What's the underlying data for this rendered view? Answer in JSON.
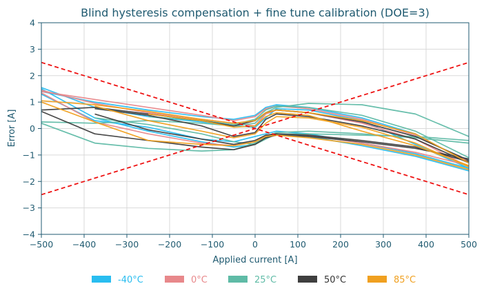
{
  "chart_data": {
    "type": "line",
    "title": "Blind hysteresis compensation + fine tune calibration (DOE=3)",
    "xlabel": "Applied current [A]",
    "ylabel": "Error [A]",
    "xlim": [
      -500,
      500
    ],
    "ylim": [
      -4,
      4
    ],
    "xticks": [
      -500,
      -400,
      -300,
      -200,
      -100,
      0,
      100,
      200,
      300,
      400,
      500
    ],
    "yticks": [
      -4,
      -3,
      -2,
      -1,
      0,
      1,
      2,
      3,
      4
    ],
    "xtick_labels": [
      "−500",
      "−400",
      "−300",
      "−200",
      "−100",
      "0",
      "100",
      "200",
      "300",
      "400",
      "500"
    ],
    "ytick_labels": [
      "−4",
      "−3",
      "−2",
      "−1",
      "0",
      "1",
      "2",
      "3",
      "4"
    ],
    "grid": true,
    "legend_position": "bottom",
    "limit_lines": [
      {
        "color": "#ee1111",
        "dash": "dashed",
        "points": [
          [
            -500,
            2.5
          ],
          [
            500,
            -2.5
          ]
        ]
      },
      {
        "color": "#ee1111",
        "dash": "dashed",
        "points": [
          [
            -500,
            -2.5
          ],
          [
            500,
            2.5
          ]
        ]
      }
    ],
    "series": [
      {
        "name": "-40°C",
        "color": "#29bdf0",
        "lines": [
          [
            [
              -500,
              1.55
            ],
            [
              -375,
              0.8
            ],
            [
              -250,
              0.45
            ],
            [
              -125,
              0.25
            ],
            [
              -50,
              0.1
            ],
            [
              0,
              0.05
            ],
            [
              25,
              0.4
            ],
            [
              50,
              0.75
            ],
            [
              125,
              0.7
            ],
            [
              250,
              0.3
            ],
            [
              375,
              -0.6
            ],
            [
              500,
              -1.5
            ]
          ],
          [
            [
              -500,
              1.4
            ],
            [
              -375,
              1.0
            ],
            [
              -250,
              0.7
            ],
            [
              -125,
              0.45
            ],
            [
              -50,
              0.35
            ],
            [
              0,
              0.5
            ],
            [
              25,
              0.8
            ],
            [
              50,
              0.9
            ],
            [
              125,
              0.8
            ],
            [
              250,
              0.4
            ],
            [
              375,
              -0.2
            ],
            [
              500,
              -1.3
            ]
          ],
          [
            [
              500,
              -1.6
            ],
            [
              375,
              -1.05
            ],
            [
              250,
              -0.65
            ],
            [
              125,
              -0.3
            ],
            [
              50,
              -0.2
            ],
            [
              25,
              -0.35
            ],
            [
              0,
              -0.6
            ],
            [
              -50,
              -0.7
            ],
            [
              -125,
              -0.5
            ],
            [
              -250,
              -0.1
            ],
            [
              -375,
              0.4
            ],
            [
              -500,
              1.5
            ]
          ],
          [
            [
              500,
              -1.5
            ],
            [
              375,
              -0.95
            ],
            [
              250,
              -0.55
            ],
            [
              125,
              -0.2
            ],
            [
              50,
              -0.1
            ],
            [
              25,
              -0.2
            ],
            [
              0,
              -0.3
            ],
            [
              -50,
              -0.5
            ],
            [
              -125,
              -0.4
            ],
            [
              -250,
              0.05
            ],
            [
              -375,
              0.3
            ],
            [
              -500,
              1.3
            ]
          ]
        ]
      },
      {
        "name": "0°C",
        "color": "#e8888b",
        "lines": [
          [
            [
              -500,
              1.4
            ],
            [
              -375,
              1.1
            ],
            [
              -250,
              0.8
            ],
            [
              -125,
              0.5
            ],
            [
              -50,
              0.3
            ],
            [
              0,
              0.45
            ],
            [
              25,
              0.75
            ],
            [
              50,
              0.85
            ],
            [
              125,
              0.75
            ],
            [
              250,
              0.35
            ],
            [
              375,
              -0.25
            ],
            [
              500,
              -1.25
            ]
          ],
          [
            [
              -500,
              1.45
            ],
            [
              -375,
              0.95
            ],
            [
              -250,
              0.6
            ],
            [
              -125,
              0.35
            ],
            [
              -50,
              0.2
            ],
            [
              0,
              0.1
            ],
            [
              25,
              0.55
            ],
            [
              50,
              0.7
            ],
            [
              125,
              0.6
            ],
            [
              250,
              0.2
            ],
            [
              375,
              -0.4
            ],
            [
              500,
              -1.45
            ]
          ],
          [
            [
              500,
              -1.4
            ],
            [
              375,
              -0.9
            ],
            [
              250,
              -0.55
            ],
            [
              125,
              -0.25
            ],
            [
              50,
              -0.2
            ],
            [
              25,
              -0.3
            ],
            [
              0,
              -0.5
            ],
            [
              -50,
              -0.65
            ],
            [
              -125,
              -0.55
            ],
            [
              -250,
              -0.2
            ],
            [
              -375,
              0.25
            ],
            [
              -500,
              1.35
            ]
          ]
        ]
      },
      {
        "name": "25°C",
        "color": "#5fbba6",
        "lines": [
          [
            [
              -500,
              0.25
            ],
            [
              -375,
              0.2
            ],
            [
              -250,
              0.3
            ],
            [
              -125,
              0.2
            ],
            [
              -50,
              0.1
            ],
            [
              0,
              0.2
            ],
            [
              25,
              0.6
            ],
            [
              50,
              0.8
            ],
            [
              125,
              0.95
            ],
            [
              250,
              0.9
            ],
            [
              375,
              0.55
            ],
            [
              500,
              -0.3
            ]
          ],
          [
            [
              -500,
              0.2
            ],
            [
              -375,
              -0.55
            ],
            [
              -250,
              -0.75
            ],
            [
              -125,
              -0.85
            ],
            [
              -50,
              -0.8
            ],
            [
              0,
              -0.55
            ],
            [
              25,
              -0.3
            ],
            [
              50,
              -0.15
            ],
            [
              125,
              -0.1
            ],
            [
              250,
              -0.2
            ],
            [
              375,
              -0.35
            ],
            [
              500,
              -0.55
            ]
          ],
          [
            [
              -375,
              0.4
            ],
            [
              -250,
              0.15
            ],
            [
              -125,
              -0.2
            ],
            [
              -50,
              -0.5
            ],
            [
              0,
              -0.6
            ],
            [
              25,
              -0.4
            ],
            [
              50,
              -0.2
            ],
            [
              125,
              -0.2
            ],
            [
              250,
              -0.25
            ],
            [
              375,
              -0.3
            ],
            [
              500,
              -0.45
            ]
          ],
          [
            [
              -250,
              0.45
            ],
            [
              -125,
              0.3
            ],
            [
              -50,
              0.15
            ],
            [
              0,
              0.35
            ],
            [
              25,
              0.7
            ],
            [
              50,
              0.85
            ],
            [
              125,
              0.8
            ],
            [
              250,
              0.5
            ],
            [
              375,
              -0.1
            ],
            [
              500,
              -1.1
            ]
          ]
        ]
      },
      {
        "name": "50°C",
        "color": "#3f3f3f",
        "lines": [
          [
            [
              -500,
              0.7
            ],
            [
              -375,
              0.8
            ],
            [
              -250,
              0.55
            ],
            [
              -125,
              0.3
            ],
            [
              -50,
              0.1
            ],
            [
              0,
              0.3
            ],
            [
              25,
              0.6
            ],
            [
              50,
              0.7
            ],
            [
              125,
              0.6
            ],
            [
              250,
              0.25
            ],
            [
              375,
              -0.3
            ],
            [
              500,
              -1.2
            ]
          ],
          [
            [
              -500,
              0.65
            ],
            [
              -375,
              -0.2
            ],
            [
              -250,
              -0.45
            ],
            [
              -125,
              -0.7
            ],
            [
              -50,
              -0.8
            ],
            [
              0,
              -0.6
            ],
            [
              25,
              -0.35
            ],
            [
              50,
              -0.25
            ],
            [
              125,
              -0.3
            ],
            [
              250,
              -0.5
            ],
            [
              375,
              -0.75
            ],
            [
              500,
              -1.15
            ]
          ],
          [
            [
              -375,
              0.75
            ],
            [
              -250,
              0.5
            ],
            [
              -125,
              0.1
            ],
            [
              -50,
              -0.3
            ],
            [
              0,
              -0.15
            ],
            [
              25,
              0.35
            ],
            [
              50,
              0.55
            ],
            [
              125,
              0.45
            ],
            [
              250,
              0.1
            ],
            [
              375,
              -0.4
            ],
            [
              500,
              -1.3
            ]
          ],
          [
            [
              500,
              -1.25
            ],
            [
              375,
              -0.7
            ],
            [
              250,
              -0.45
            ],
            [
              125,
              -0.25
            ],
            [
              50,
              -0.2
            ],
            [
              25,
              -0.25
            ],
            [
              0,
              -0.45
            ],
            [
              -50,
              -0.6
            ],
            [
              -125,
              -0.4
            ],
            [
              -250,
              -0.05
            ],
            [
              -375,
              0.55
            ]
          ]
        ]
      },
      {
        "name": "85°C",
        "color": "#f0a020",
        "lines": [
          [
            [
              -500,
              1.05
            ],
            [
              -375,
              0.9
            ],
            [
              -250,
              0.65
            ],
            [
              -125,
              0.35
            ],
            [
              -50,
              0.2
            ],
            [
              0,
              0.3
            ],
            [
              25,
              0.6
            ],
            [
              50,
              0.7
            ],
            [
              125,
              0.6
            ],
            [
              250,
              0.3
            ],
            [
              375,
              -0.2
            ],
            [
              500,
              -1.3
            ]
          ],
          [
            [
              -500,
              1.0
            ],
            [
              -375,
              0.25
            ],
            [
              -250,
              -0.45
            ],
            [
              -125,
              -0.6
            ],
            [
              -50,
              -0.65
            ],
            [
              0,
              -0.5
            ],
            [
              25,
              -0.3
            ],
            [
              50,
              -0.25
            ],
            [
              125,
              -0.35
            ],
            [
              250,
              -0.6
            ],
            [
              375,
              -1.0
            ],
            [
              500,
              -1.55
            ]
          ],
          [
            [
              -375,
              0.85
            ],
            [
              -250,
              0.3
            ],
            [
              -125,
              -0.1
            ],
            [
              -50,
              -0.35
            ],
            [
              0,
              -0.2
            ],
            [
              25,
              0.2
            ],
            [
              50,
              0.45
            ],
            [
              125,
              0.4
            ],
            [
              250,
              0.05
            ],
            [
              375,
              -0.55
            ],
            [
              500,
              -1.45
            ]
          ],
          [
            [
              -250,
              0.55
            ],
            [
              -125,
              0.3
            ],
            [
              -50,
              0.05
            ],
            [
              0,
              0.1
            ],
            [
              25,
              0.45
            ],
            [
              50,
              0.6
            ],
            [
              125,
              0.5
            ],
            [
              250,
              -0.1
            ],
            [
              375,
              -0.65
            ],
            [
              500,
              -1.4
            ]
          ]
        ]
      }
    ]
  }
}
